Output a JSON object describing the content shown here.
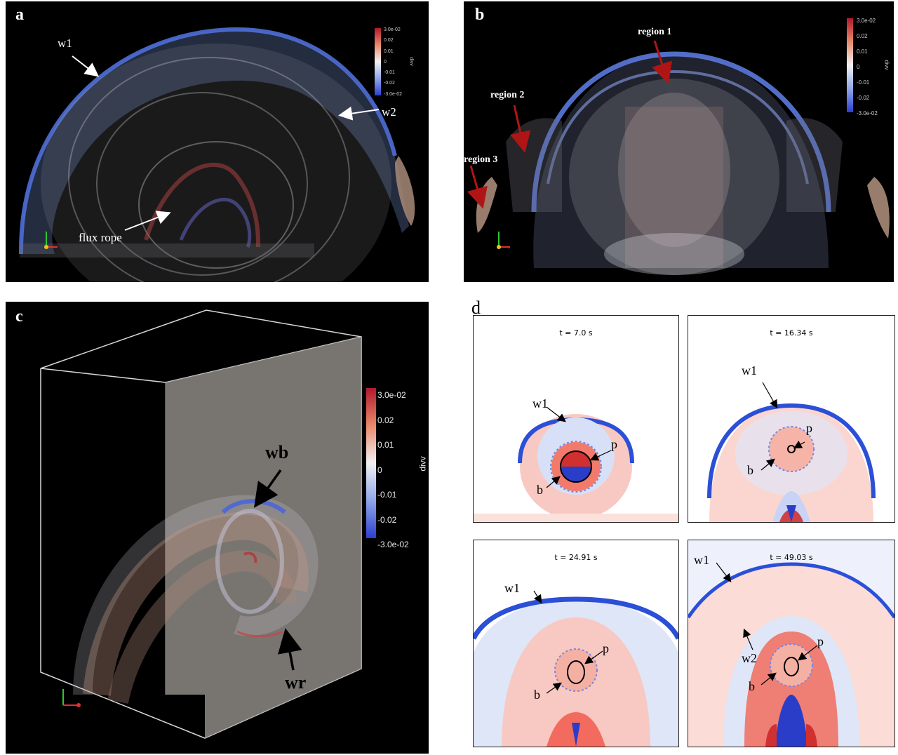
{
  "panels": {
    "a": {
      "label": "a",
      "annotations": {
        "w1": "w1",
        "w2": "w2",
        "flux_rope": "flux rope"
      },
      "colorbar": {
        "ticks": [
          "3.0e-02",
          "0.02",
          "0.01",
          "0",
          "-0.01",
          "-0.02",
          "-3.0e-02"
        ],
        "title": "divv"
      }
    },
    "b": {
      "label": "b",
      "annotations": {
        "region1": "region 1",
        "region2": "region 2",
        "region3": "region 3"
      },
      "colorbar": {
        "ticks": [
          "3.0e-02",
          "0.02",
          "0.01",
          "0",
          "-0.01",
          "-0.02",
          "-3.0e-02"
        ],
        "title": "divv"
      }
    },
    "c": {
      "label": "c",
      "annotations": {
        "wb": "wb",
        "wr": "wr"
      },
      "colorbar": {
        "ticks": [
          "3.0e-02",
          "0.02",
          "0.01",
          "0",
          "-0.01",
          "-0.02",
          "-3.0e-02"
        ],
        "title": "divv"
      }
    },
    "d": {
      "label": "d",
      "subplots": [
        {
          "title": "t = 7.0 s",
          "labels": {
            "w1": "w1",
            "p": "p",
            "b": "b"
          }
        },
        {
          "title": "t = 16.34 s",
          "labels": {
            "w1": "w1",
            "p": "p",
            "b": "b"
          }
        },
        {
          "title": "t = 24.91 s",
          "labels": {
            "w1": "w1",
            "p": "p",
            "b": "b"
          }
        },
        {
          "title": "t = 49.03 s",
          "labels": {
            "w1": "w1",
            "w2": "w2",
            "p": "p",
            "b": "b"
          }
        }
      ]
    }
  },
  "colors": {
    "positive": "#d7191c",
    "negative": "#2b4fd6",
    "neutral": "#f4f4f4",
    "arrow_region": "#b01515"
  }
}
